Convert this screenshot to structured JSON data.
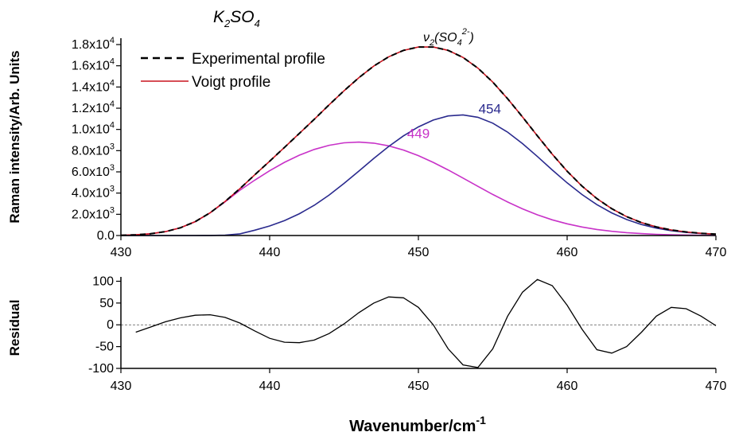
{
  "chart_data": [
    {
      "type": "line",
      "title": "K₂SO₄",
      "title_parts": {
        "base": "K",
        "sub1": "2",
        "mid": "SO",
        "sub2": "4"
      },
      "ylabel": "Raman intensity/Arb. Units",
      "xlabel": "",
      "xlim": [
        430,
        470
      ],
      "ylim": [
        0,
        18000
      ],
      "x_ticks": [
        "430",
        "440",
        "450",
        "460",
        "470"
      ],
      "y_ticks": [
        {
          "value": 0,
          "base": "0.0",
          "exp": ""
        },
        {
          "value": 2000,
          "base": "2.0x10",
          "exp": "3"
        },
        {
          "value": 4000,
          "base": "4.0x10",
          "exp": "3"
        },
        {
          "value": 6000,
          "base": "6.0x10",
          "exp": "3"
        },
        {
          "value": 8000,
          "base": "8.0x10",
          "exp": "3"
        },
        {
          "value": 10000,
          "base": "1.0x10",
          "exp": "4"
        },
        {
          "value": 12000,
          "base": "1.2x10",
          "exp": "4"
        },
        {
          "value": 14000,
          "base": "1.4x10",
          "exp": "4"
        },
        {
          "value": 16000,
          "base": "1.6x10",
          "exp": "4"
        },
        {
          "value": 18000,
          "base": "1.8x10",
          "exp": "4"
        }
      ],
      "legend": [
        "Experimental profile",
        "Voigt profile"
      ],
      "legend_position": "top-left",
      "peak_label": {
        "nu": "ν",
        "nu_sub": "2",
        "open": "(SO",
        "sub": "4",
        "sup": "2-",
        "close": ")"
      },
      "annotations": [
        {
          "text": "449",
          "x": 450,
          "y": 9200,
          "color": "#c832c8"
        },
        {
          "text": "454",
          "x": 454.8,
          "y": 11500,
          "color": "#2a2a8e"
        }
      ],
      "x": [
        430,
        431,
        432,
        433,
        434,
        435,
        436,
        437,
        438,
        439,
        440,
        441,
        442,
        443,
        444,
        445,
        446,
        447,
        448,
        449,
        450,
        451,
        452,
        453,
        454,
        455,
        456,
        457,
        458,
        459,
        460,
        461,
        462,
        463,
        464,
        465,
        466,
        467,
        468,
        469,
        470
      ],
      "series": [
        {
          "name": "Experimental profile",
          "color": "#000000",
          "dash": "dashed",
          "values": [
            24,
            67,
            166,
            366,
            727,
            1310,
            2145,
            3207,
            4420,
            5726,
            7007,
            8313,
            9628,
            10961,
            12320,
            13644,
            14879,
            15977,
            16847,
            17450,
            17767,
            17771,
            17449,
            16784,
            15779,
            14458,
            12895,
            11173,
            9395,
            7662,
            6063,
            4661,
            3483,
            2527,
            1779,
            1216,
            809,
            525,
            335,
            211,
            131
          ]
        },
        {
          "name": "Voigt profile",
          "color": "#c8141e",
          "dash": "solid",
          "values": [
            24,
            67,
            166,
            366,
            727,
            1310,
            2145,
            3207,
            4420,
            5726,
            7007,
            8313,
            9628,
            10961,
            12320,
            13644,
            14879,
            15977,
            16847,
            17450,
            17767,
            17771,
            17449,
            16784,
            15779,
            14458,
            12895,
            11173,
            9395,
            7662,
            6063,
            4661,
            3483,
            2527,
            1779,
            1216,
            809,
            525,
            335,
            211,
            131
          ]
        },
        {
          "name": "",
          "color": "#c832c8",
          "dash": "solid",
          "values": [
            24,
            67,
            166,
            366,
            726,
            1307,
            2136,
            3168,
            4266,
            5220,
            6108,
            6900,
            7573,
            8112,
            8502,
            8734,
            8803,
            8708,
            8455,
            8056,
            7527,
            6892,
            6178,
            5414,
            4633,
            3870,
            3154,
            2510,
            1948,
            1479,
            1099,
            801,
            571,
            398,
            271,
            179,
            115,
            72,
            44,
            26,
            15
          ]
        },
        {
          "name": "",
          "color": "#2a2a8e",
          "dash": "solid",
          "values": [
            0,
            0,
            0,
            0,
            1,
            3,
            9,
            39,
            154,
            506,
            899,
            1413,
            2055,
            2849,
            3818,
            4910,
            6076,
            7269,
            8392,
            9394,
            10240,
            10879,
            11271,
            11370,
            11146,
            10588,
            9741,
            8663,
            7447,
            6183,
            4964,
            3860,
            2912,
            2129,
            1508,
            1037,
            694,
            453,
            291,
            185,
            116
          ]
        }
      ]
    },
    {
      "type": "line",
      "title": "",
      "ylabel": "Residual",
      "xlabel": "Wavenumber/cm",
      "xlabel_sup": "-1",
      "xlim": [
        430,
        470
      ],
      "ylim": [
        -100,
        110
      ],
      "x_ticks": [
        "430",
        "440",
        "450",
        "460",
        "470"
      ],
      "y_ticks": [
        {
          "value": 100,
          "label": "100"
        },
        {
          "value": 50,
          "label": "50"
        },
        {
          "value": 0,
          "label": "0"
        },
        {
          "value": -50,
          "label": "-50"
        },
        {
          "value": -100,
          "label": "-100"
        }
      ],
      "zero_line": true,
      "x": [
        431,
        432,
        433,
        434,
        435,
        436,
        437,
        438,
        439,
        440,
        441,
        442,
        443,
        444,
        445,
        446,
        447,
        448,
        449,
        450,
        451,
        452,
        453,
        454,
        455,
        456,
        457,
        458,
        459,
        460,
        461,
        462,
        463,
        464,
        465,
        466,
        467,
        468,
        469,
        470
      ],
      "series": [
        {
          "name": "",
          "color": "#000000",
          "values": [
            -17,
            -5,
            7,
            16,
            22,
            23,
            17,
            4,
            -14,
            -31,
            -40,
            -41,
            -35,
            -20,
            2,
            28,
            50,
            64,
            62,
            40,
            0,
            -55,
            -92,
            -98,
            -55,
            20,
            75,
            104,
            90,
            45,
            -10,
            -57,
            -65,
            -50,
            -17,
            20,
            40,
            37,
            20,
            -2
          ]
        }
      ]
    }
  ]
}
